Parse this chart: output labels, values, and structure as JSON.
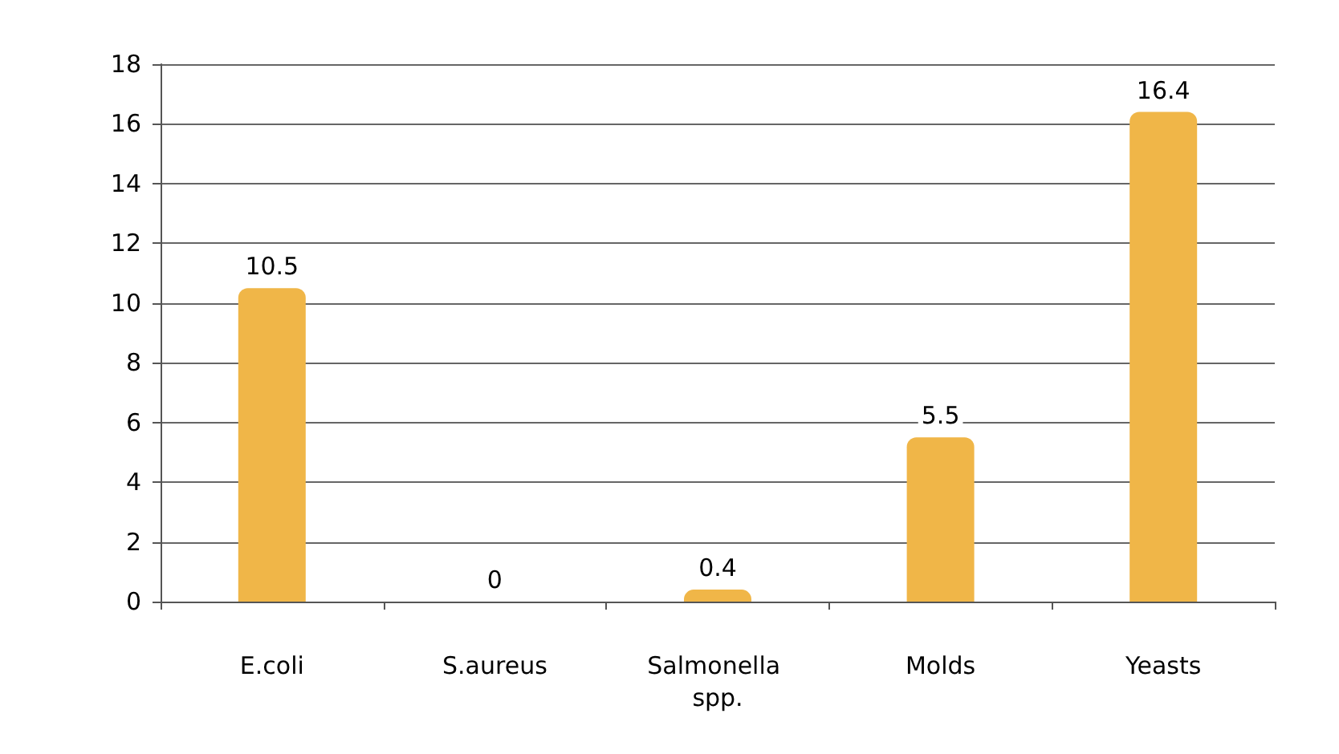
{
  "chart_data": {
    "type": "bar",
    "categories": [
      "E.coli",
      "S.aureus",
      "Salmonella spp.",
      "Molds",
      "Yeasts"
    ],
    "values": [
      10.5,
      0,
      0.4,
      5.5,
      16.4
    ],
    "color": "#f0b648",
    "ylim": [
      0,
      18
    ],
    "yticks": [
      0,
      2,
      4,
      6,
      8,
      10,
      12,
      14,
      16,
      18
    ],
    "grid": "y",
    "data_labels": true
  }
}
